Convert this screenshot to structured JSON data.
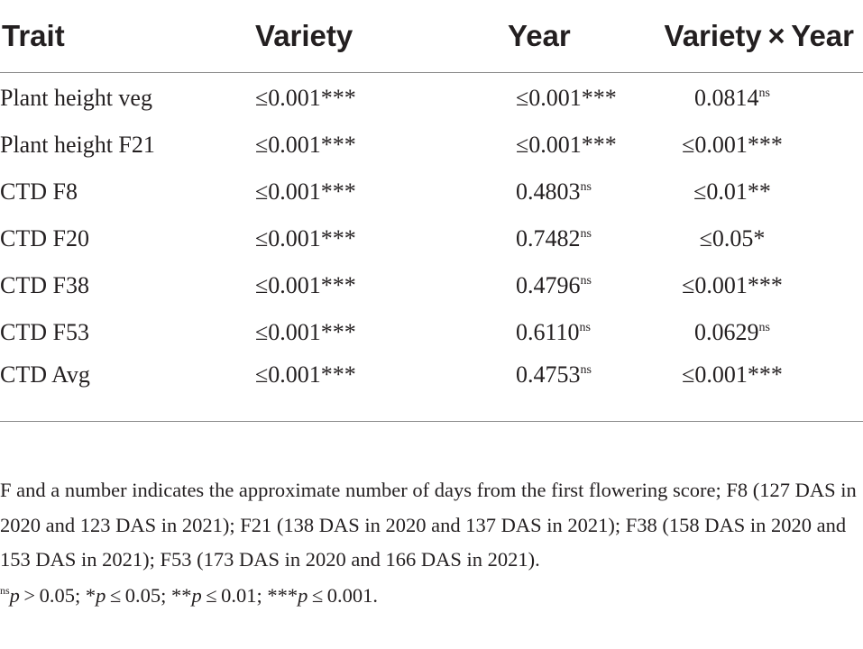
{
  "table": {
    "headers": [
      "Trait",
      "Variety",
      "Year",
      "Variety × Year"
    ],
    "rows": [
      {
        "trait": "Plant height veg",
        "variety": "≤0.001***",
        "year": "≤0.001***",
        "vxy": "0.0814",
        "vxy_sup": "ns"
      },
      {
        "trait": "Plant height F21",
        "variety": "≤0.001***",
        "year": "≤0.001***",
        "vxy": "≤0.001***"
      },
      {
        "trait": "CTD F8",
        "variety": "≤0.001***",
        "year": "0.4803",
        "year_sup": "ns",
        "vxy": "≤0.01**"
      },
      {
        "trait": "CTD F20",
        "variety": "≤0.001***",
        "year": "0.7482",
        "year_sup": "ns",
        "vxy": "≤0.05*"
      },
      {
        "trait": "CTD F38",
        "variety": "≤0.001***",
        "year": "0.4796",
        "year_sup": "ns",
        "vxy": "≤0.001***"
      },
      {
        "trait": "CTD F53",
        "variety": "≤0.001***",
        "year": "0.6110",
        "year_sup": "ns",
        "vxy": "0.0629",
        "vxy_sup": "ns"
      },
      {
        "trait": "CTD Avg",
        "variety": "≤0.001***",
        "year": "0.4753",
        "year_sup": "ns",
        "vxy": "≤0.001***"
      }
    ]
  },
  "footnote": {
    "text": "F and a number indicates the approximate number of days from the first flowering score; F8 (127 DAS in 2020 and 123 DAS in 2021); F21 (138 DAS in 2020 and 137 DAS in 2021); F38 (158 DAS in 2020 and 153 DAS in 2021); F53 (173 DAS in 2020 and 166 DAS in 2021).",
    "sig_sup": "ns",
    "sig_parts": [
      {
        "italic": "p",
        "text": " > 0.05; *"
      },
      {
        "italic": "p",
        "text": " ≤ 0.05; **"
      },
      {
        "italic": "p",
        "text": " ≤ 0.01; ***"
      },
      {
        "italic": "p",
        "text": " ≤ 0.001."
      }
    ]
  }
}
